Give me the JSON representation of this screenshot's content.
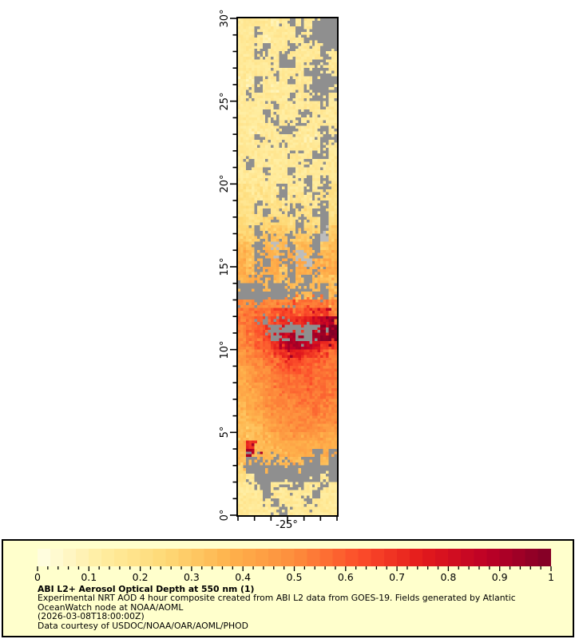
{
  "page": {
    "background": "#ffffff"
  },
  "chart_data": {
    "type": "heatmap",
    "title": "ABI L2+ Aerosol Optical Depth at 550 nm (1)",
    "x_axis": {
      "range": [
        -28,
        -22
      ],
      "minor_step": 1,
      "ticks": [
        {
          "value": -25,
          "label": "-25°"
        }
      ]
    },
    "y_axis": {
      "range": [
        0,
        30
      ],
      "minor_step": 1,
      "ticks": [
        {
          "value": 30,
          "label": "30°"
        },
        {
          "value": 25,
          "label": "25°"
        },
        {
          "value": 20,
          "label": "20°"
        },
        {
          "value": 15,
          "label": "15°"
        },
        {
          "value": 10,
          "label": "10°"
        },
        {
          "value": 5,
          "label": "5°"
        },
        {
          "value": 0,
          "label": "0°"
        }
      ]
    },
    "colormap": {
      "name": "YlOrRd",
      "stops": [
        [
          0.0,
          "#ffffe5"
        ],
        [
          0.125,
          "#ffeda0"
        ],
        [
          0.25,
          "#fed976"
        ],
        [
          0.375,
          "#feb24c"
        ],
        [
          0.5,
          "#fd8d3c"
        ],
        [
          0.625,
          "#fc4e2a"
        ],
        [
          0.75,
          "#e31a1c"
        ],
        [
          0.875,
          "#bd0026"
        ],
        [
          1.0,
          "#800026"
        ]
      ]
    },
    "missing_color": "#8f8f8f",
    "island_color": "#bdbdbd",
    "grid": {
      "cols": 12,
      "rows": 60,
      "lon_min": -28,
      "lon_max": -22,
      "lat_min": 0,
      "lat_max": 30,
      "encoding": "each char = 0.5deg cell; '.'=missing(gray), 'x'=island(light gray), a..t = AOD 0.05..1.00 in 0.05 steps; rows listed north(30N) to south(0N)",
      "rows_data": [
        "ccccbc.cc...",
        "cc.cccc.c...",
        "cccbcccc....",
        "ccc.cc.ccc..",
        "cc.cc.cccc.c",
        "ccccc..cc.cc",
        "cccc.ccc...c",
        "cb.ccc.cc...",
        "cc.cbccc....",
        "c.cccc.cc..c",
        "cccc.ccccc.c",
        "ccc.cccc.ccc",
        "cccc.cc.cccc",
        "cbccc..ccc.c",
        "cc.cccccbc..",
        "ccccc.cccc.c",
        "cccccc.cc..c",
        "c.cccccc.ccc",
        "ccc.cc.ccccc",
        "cccccccc.c.c",
        "dcdcc.cc.c.d",
        "ddcdc.cdc.dd",
        "dd.ddcd.dc.d",
        "ddd.dd.dd..d",
        "edde.ed.ed.e",
        "ee.effe.fe.f",
        "fef.gf.ff.xf",
        "gf.gxg.gg.fg",
        "gg.hg.hxg.gg",
        "hfh.hh.hxhgh",
        "hg.hhf.hh.hh",
        "ghh.gg.g.ggf",
        "...g..g..g.g",
        ".......gg..g",
        "jj.jjjjkkkkj",
        "jkkklmmlmmnk",
        "kkl.mnnnopqr",
        "jkln......st",
        "jklm.pr..rst",
        "jkllnqrrqpnm",
        "ijklmnoonmlk",
        "ijjkklmmllkk",
        "hijjkllllkkk",
        "hijjkkkklkkk",
        "hiijjkkkkkkk",
        "hhijjjkkkkkk",
        "ghijjjjkkkkj",
        "ghhijjjjjkjj",
        "gghiijjjjjjj",
        "ggghiijjjjii",
        "gfghhiiiiihh",
        "hngghhhhhhhh",
        "grggghhhh.h.",
        "g..g.ggg..g.",
        "e...........",
        "dc........c.",
        "cc..cc..cc.c",
        "ccc.ccccc.cc",
        "cccc.ccc.ccc",
        "ccccc.cccccc"
      ]
    },
    "colorbar": {
      "min": 0,
      "max": 1,
      "blocks": 40,
      "major_tick_step": 0.1,
      "minor_tick_step": 0.02,
      "tick_labels": [
        "0",
        "0.1",
        "0.2",
        "0.3",
        "0.4",
        "0.5",
        "0.6",
        "0.7",
        "0.8",
        "0.9",
        "1"
      ]
    },
    "legend": {
      "background": "#ffffcc",
      "title": "ABI L2+ Aerosol Optical Depth at 550 nm (1)",
      "line1": "Experimental NRT AOD 4 hour composite created from ABI L2 data from GOES-19. Fields generated by Atlantic",
      "line2": "OceanWatch node at NOAA/AOML",
      "line3": "(2026-03-08T18:00:00Z)",
      "line4": "Data courtesy of USDOC/NOAA/OAR/AOML/PHOD"
    }
  }
}
